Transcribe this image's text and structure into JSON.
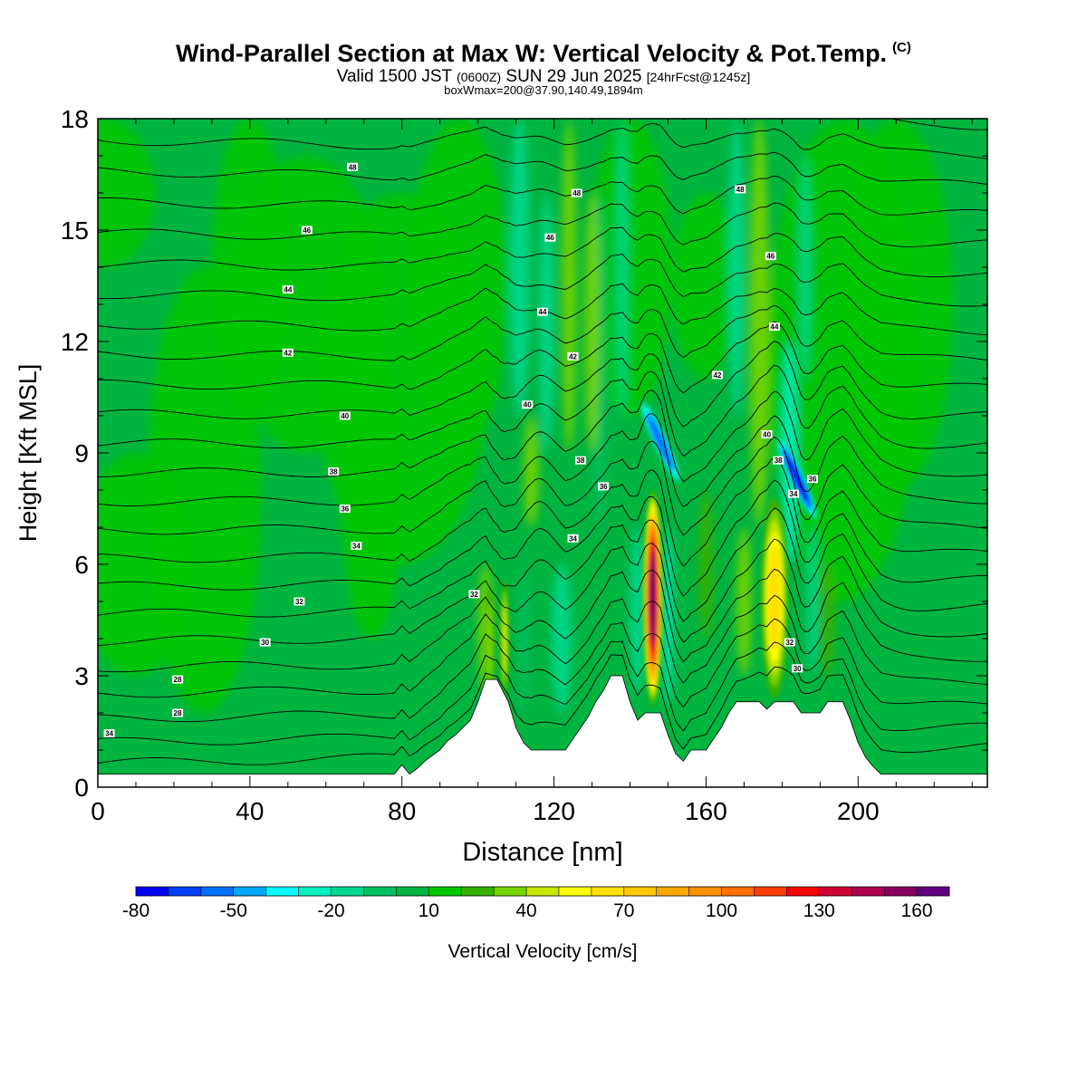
{
  "header": {
    "title": "Wind-Parallel Section at Max W: Vertical Velocity & Pot.Temp.",
    "copyright": "(C)",
    "valid_main": "Valid 1500 JST",
    "valid_utc": "(0600Z)",
    "valid_date": "SUN 29 Jun 2025",
    "forecast": "[24hrFcst@1245z]",
    "boxwmax": "boxWmax=200@37.90,140.49,1894m"
  },
  "chart_data": {
    "type": "heatmap",
    "xlabel": "Distance [nm]",
    "ylabel": "Height [Kft MSL]",
    "xlim": [
      0,
      234
    ],
    "ylim": [
      0,
      18
    ],
    "x_ticks": [
      0,
      40,
      80,
      120,
      160,
      200
    ],
    "y_ticks": [
      0,
      3,
      6,
      9,
      12,
      15,
      18
    ],
    "colorbar": {
      "label": "Vertical Velocity [cm/s]",
      "min": -80,
      "max": 170,
      "step": 10,
      "tick_labels": [
        "-80",
        "-50",
        "-20",
        "10",
        "40",
        "70",
        "100",
        "130",
        "160"
      ],
      "colors": [
        "#0000ff",
        "#0040ff",
        "#0070ff",
        "#00a8ff",
        "#00ffff",
        "#00f0c0",
        "#00d890",
        "#00c060",
        "#00b440",
        "#00c800",
        "#38b000",
        "#78d400",
        "#c8e600",
        "#ffff00",
        "#ffe000",
        "#ffc800",
        "#ffa800",
        "#ff9000",
        "#ff7000",
        "#ff3c00",
        "#ff0000",
        "#d00030",
        "#b00050",
        "#880060",
        "#600080"
      ]
    },
    "updraft_cores": [
      {
        "x": 146,
        "z_bottom": 2.2,
        "z_top": 8.0,
        "w_max": 160
      },
      {
        "x": 178,
        "z_bottom": 2.4,
        "z_top": 7.8,
        "w_max": 70
      },
      {
        "x": 103,
        "z_bottom": 2.4,
        "z_top": 5.4,
        "w_max": 40
      },
      {
        "x": 107,
        "z_bottom": 2.4,
        "z_top": 5.6,
        "w_max": 50
      }
    ],
    "downdraft_cores": [
      {
        "x": 184,
        "z": 8.3,
        "w_min": -80
      },
      {
        "x": 148,
        "z": 9.3,
        "w_min": -60
      }
    ],
    "terrain_nm_kft": [
      [
        0,
        0.35
      ],
      [
        78,
        0.35
      ],
      [
        80,
        0.6
      ],
      [
        82,
        0.35
      ],
      [
        84,
        0.5
      ],
      [
        86,
        0.7
      ],
      [
        88,
        0.85
      ],
      [
        90,
        1.0
      ],
      [
        92,
        1.25
      ],
      [
        94,
        1.4
      ],
      [
        96,
        1.6
      ],
      [
        98,
        1.8
      ],
      [
        100,
        2.3
      ],
      [
        102,
        2.9
      ],
      [
        105,
        2.9
      ],
      [
        108,
        2.3
      ],
      [
        110,
        1.6
      ],
      [
        112,
        1.2
      ],
      [
        114,
        1.0
      ],
      [
        116,
        1.0
      ],
      [
        118,
        1.0
      ],
      [
        120,
        1.0
      ],
      [
        123,
        1.0
      ],
      [
        125,
        1.3
      ],
      [
        127,
        1.6
      ],
      [
        129,
        1.9
      ],
      [
        131,
        2.3
      ],
      [
        133,
        2.6
      ],
      [
        135,
        3.0
      ],
      [
        138,
        3.0
      ],
      [
        140,
        2.3
      ],
      [
        142,
        1.8
      ],
      [
        144,
        2.0
      ],
      [
        148,
        2.0
      ],
      [
        150,
        1.4
      ],
      [
        152,
        0.9
      ],
      [
        154,
        0.7
      ],
      [
        156,
        1.0
      ],
      [
        158,
        1.0
      ],
      [
        160,
        1.0
      ],
      [
        162,
        1.3
      ],
      [
        164,
        1.6
      ],
      [
        166,
        2.0
      ],
      [
        168,
        2.3
      ],
      [
        174,
        2.3
      ],
      [
        176,
        2.1
      ],
      [
        178,
        2.3
      ],
      [
        183,
        2.3
      ],
      [
        185,
        2.0
      ],
      [
        190,
        2.0
      ],
      [
        192,
        2.3
      ],
      [
        196,
        2.3
      ],
      [
        198,
        1.8
      ],
      [
        200,
        1.2
      ],
      [
        202,
        0.8
      ],
      [
        204,
        0.55
      ],
      [
        206,
        0.35
      ],
      [
        234,
        0.35
      ]
    ],
    "theta_contour_labels": [
      {
        "text": "34",
        "x": 3,
        "z": 1.45
      },
      {
        "text": "28",
        "x": 21,
        "z": 2.0
      },
      {
        "text": "28",
        "x": 21,
        "z": 2.9
      },
      {
        "text": "30",
        "x": 44,
        "z": 3.9
      },
      {
        "text": "32",
        "x": 53,
        "z": 5.0
      },
      {
        "text": "34",
        "x": 68,
        "z": 6.5
      },
      {
        "text": "36",
        "x": 65,
        "z": 7.5
      },
      {
        "text": "38",
        "x": 62,
        "z": 8.5
      },
      {
        "text": "40",
        "x": 65,
        "z": 10.0
      },
      {
        "text": "42",
        "x": 50,
        "z": 11.7
      },
      {
        "text": "44",
        "x": 50,
        "z": 13.4
      },
      {
        "text": "46",
        "x": 55,
        "z": 15.0
      },
      {
        "text": "48",
        "x": 67,
        "z": 16.7
      },
      {
        "text": "32",
        "x": 99,
        "z": 5.2
      },
      {
        "text": "34",
        "x": 125,
        "z": 6.7
      },
      {
        "text": "36",
        "x": 133,
        "z": 8.1
      },
      {
        "text": "38",
        "x": 127,
        "z": 8.8
      },
      {
        "text": "40",
        "x": 113,
        "z": 10.3
      },
      {
        "text": "42",
        "x": 125,
        "z": 11.6
      },
      {
        "text": "44",
        "x": 117,
        "z": 12.8
      },
      {
        "text": "46",
        "x": 119,
        "z": 14.8
      },
      {
        "text": "48",
        "x": 126,
        "z": 16.0
      },
      {
        "text": "48",
        "x": 169,
        "z": 16.1
      },
      {
        "text": "46",
        "x": 177,
        "z": 14.3
      },
      {
        "text": "44",
        "x": 178,
        "z": 12.4
      },
      {
        "text": "42",
        "x": 163,
        "z": 11.1
      },
      {
        "text": "40",
        "x": 176,
        "z": 9.5
      },
      {
        "text": "38",
        "x": 179,
        "z": 8.8
      },
      {
        "text": "36",
        "x": 188,
        "z": 8.3
      },
      {
        "text": "34",
        "x": 183,
        "z": 7.9
      },
      {
        "text": "32",
        "x": 182,
        "z": 3.9
      },
      {
        "text": "30",
        "x": 184,
        "z": 3.2
      }
    ],
    "theta_levels": [
      26,
      27,
      28,
      29,
      30,
      31,
      32,
      33,
      34,
      35,
      36,
      37,
      38,
      39,
      40,
      41,
      42,
      43,
      44,
      45,
      46,
      47,
      48,
      49
    ]
  }
}
